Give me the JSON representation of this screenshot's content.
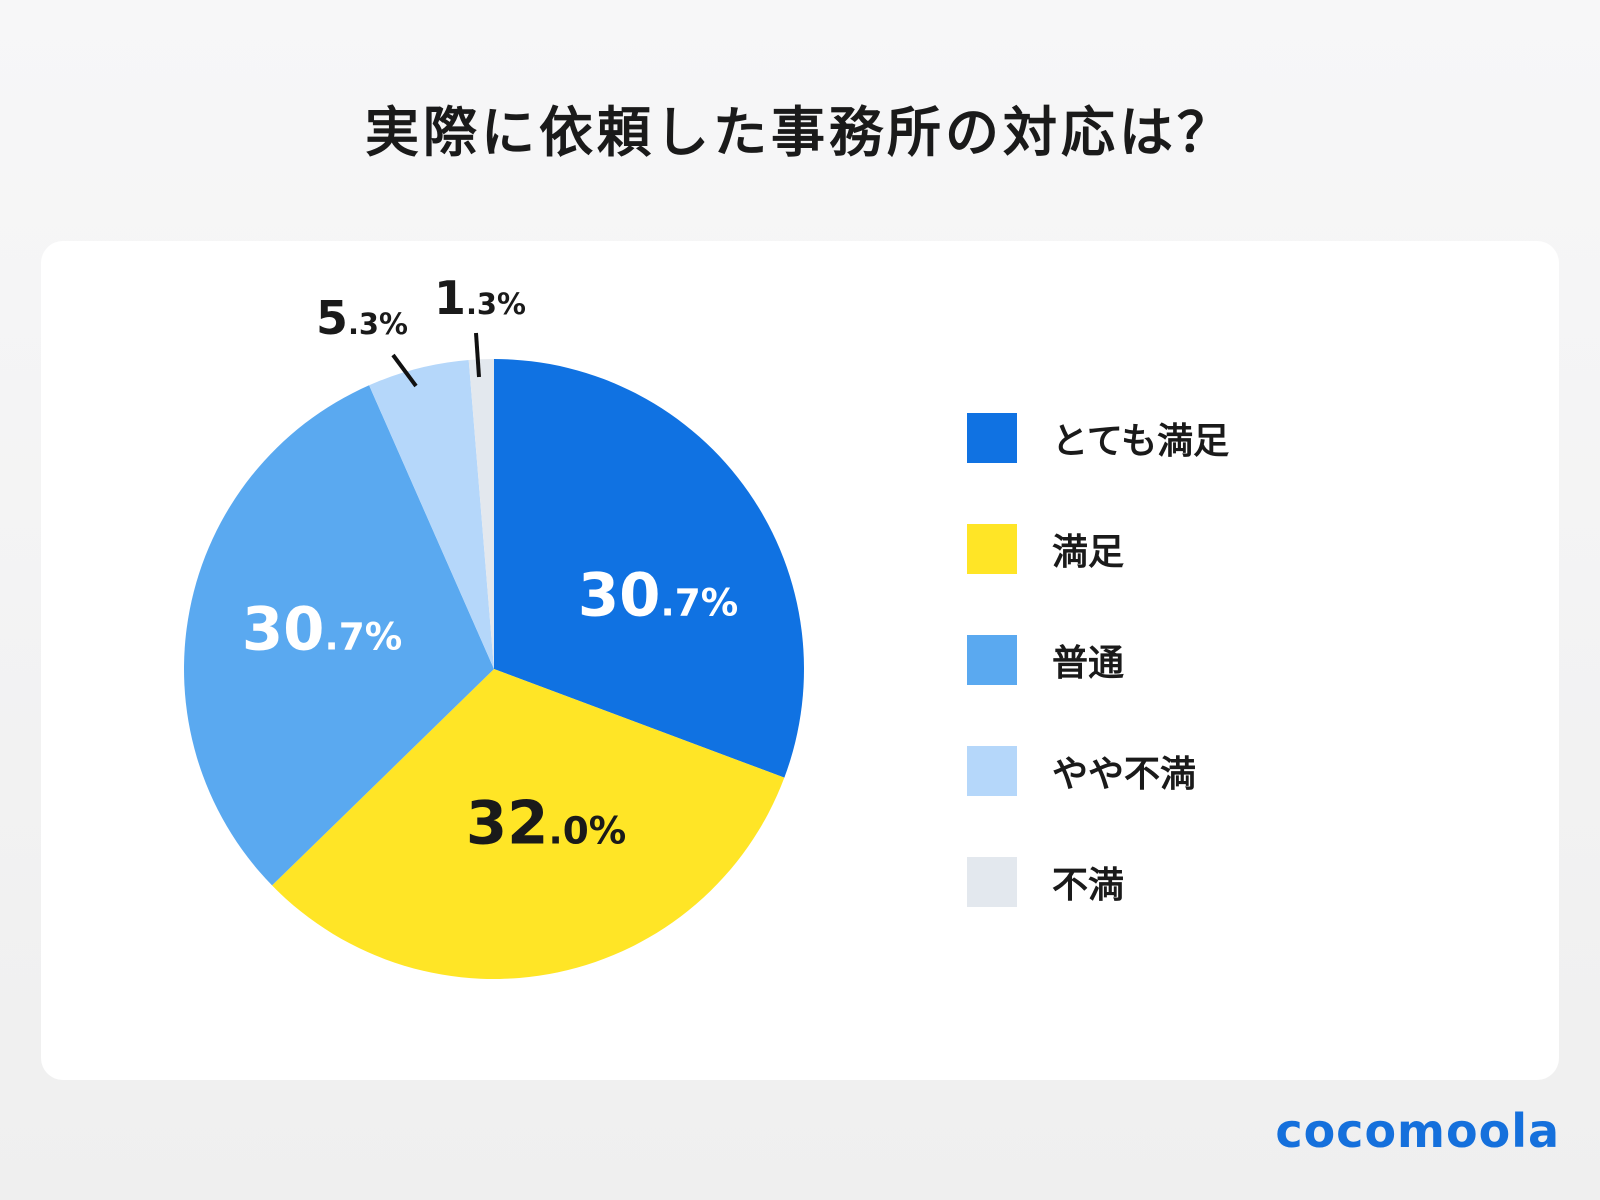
{
  "chart_data": {
    "type": "pie",
    "title": "実際に依頼した事務所の対応は？",
    "start": "top",
    "direction": "clockwise",
    "legend_position": "right",
    "slices": [
      {
        "label": "とても満足",
        "value": 30.7,
        "display": "30.7%",
        "color": "#1072e2",
        "label_color": "#ffffff"
      },
      {
        "label": "満足",
        "value": 32.0,
        "display": "32.0%",
        "color": "#ffe526",
        "label_color": "#1a1a1a"
      },
      {
        "label": "普通",
        "value": 30.7,
        "display": "30.7%",
        "color": "#5aa9f0",
        "label_color": "#ffffff"
      },
      {
        "label": "やや不満",
        "value": 5.3,
        "display": "5.3%",
        "color": "#b5d7fa",
        "label_color": "#1a1a1a"
      },
      {
        "label": "不満",
        "value": 1.3,
        "display": "1.3%",
        "color": "#e3e8ee",
        "label_color": "#1a1a1a"
      }
    ]
  },
  "brand": {
    "logo_text": "cocomoola",
    "color": "#1570dc"
  }
}
